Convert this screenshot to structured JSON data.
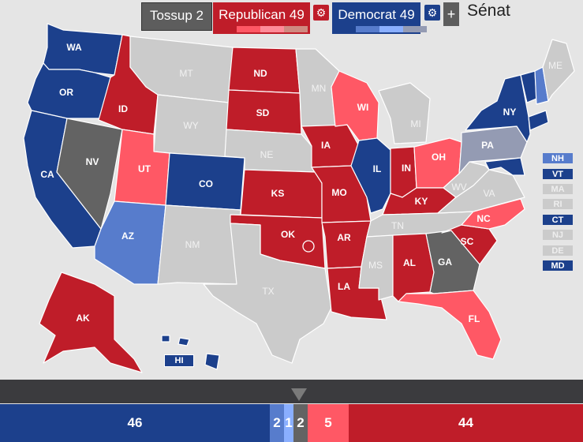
{
  "toolbar": {
    "tossup_label": "Tossup 2",
    "republican_label": "Republican 49",
    "democrat_label": "Democrat 49",
    "plus_label": "+",
    "title": "Sénat"
  },
  "colors": {
    "safe_dem": "#1c408c",
    "likely_dem": "#577ccc",
    "lean_dem": "#8aafff",
    "tilt_dem": "#949bb3",
    "tossup": "#636363",
    "tilt_rep": "#cf8980",
    "lean_rep": "#ff8b98",
    "likely_rep": "#ff5865",
    "safe_rep": "#bf1d29",
    "no_race": "#cbcbcb",
    "background": "#e5e5e5"
  },
  "states": [
    {
      "abbr": "WA",
      "rating": "safe_dem"
    },
    {
      "abbr": "OR",
      "rating": "safe_dem"
    },
    {
      "abbr": "CA",
      "rating": "safe_dem"
    },
    {
      "abbr": "NV",
      "rating": "tossup"
    },
    {
      "abbr": "ID",
      "rating": "safe_rep"
    },
    {
      "abbr": "MT",
      "rating": "no_race"
    },
    {
      "abbr": "WY",
      "rating": "no_race"
    },
    {
      "abbr": "UT",
      "rating": "likely_rep"
    },
    {
      "abbr": "AZ",
      "rating": "likely_dem"
    },
    {
      "abbr": "CO",
      "rating": "safe_dem"
    },
    {
      "abbr": "NM",
      "rating": "no_race"
    },
    {
      "abbr": "ND",
      "rating": "safe_rep"
    },
    {
      "abbr": "SD",
      "rating": "safe_rep"
    },
    {
      "abbr": "NE",
      "rating": "no_race"
    },
    {
      "abbr": "KS",
      "rating": "safe_rep"
    },
    {
      "abbr": "OK",
      "rating": "safe_rep"
    },
    {
      "abbr": "TX",
      "rating": "no_race"
    },
    {
      "abbr": "MN",
      "rating": "no_race"
    },
    {
      "abbr": "IA",
      "rating": "safe_rep"
    },
    {
      "abbr": "MO",
      "rating": "safe_rep"
    },
    {
      "abbr": "AR",
      "rating": "safe_rep"
    },
    {
      "abbr": "LA",
      "rating": "safe_rep"
    },
    {
      "abbr": "WI",
      "rating": "likely_rep"
    },
    {
      "abbr": "IL",
      "rating": "safe_dem"
    },
    {
      "abbr": "MI",
      "rating": "no_race"
    },
    {
      "abbr": "IN",
      "rating": "safe_rep"
    },
    {
      "abbr": "OH",
      "rating": "likely_rep"
    },
    {
      "abbr": "KY",
      "rating": "safe_rep"
    },
    {
      "abbr": "TN",
      "rating": "no_race"
    },
    {
      "abbr": "MS",
      "rating": "no_race"
    },
    {
      "abbr": "AL",
      "rating": "safe_rep"
    },
    {
      "abbr": "GA",
      "rating": "tossup"
    },
    {
      "abbr": "FL",
      "rating": "likely_rep"
    },
    {
      "abbr": "SC",
      "rating": "safe_rep"
    },
    {
      "abbr": "NC",
      "rating": "likely_rep"
    },
    {
      "abbr": "VA",
      "rating": "no_race"
    },
    {
      "abbr": "WV",
      "rating": "no_race"
    },
    {
      "abbr": "PA",
      "rating": "tilt_dem"
    },
    {
      "abbr": "NY",
      "rating": "safe_dem"
    },
    {
      "abbr": "VT",
      "rating": "safe_dem"
    },
    {
      "abbr": "NH",
      "rating": "likely_dem"
    },
    {
      "abbr": "ME",
      "rating": "no_race"
    },
    {
      "abbr": "MD",
      "rating": "safe_dem"
    },
    {
      "abbr": "CT",
      "rating": "safe_dem"
    },
    {
      "abbr": "AK",
      "rating": "safe_rep"
    },
    {
      "abbr": "HI",
      "rating": "safe_dem"
    }
  ],
  "northeast_boxes": [
    {
      "abbr": "NH",
      "rating": "likely_dem"
    },
    {
      "abbr": "VT",
      "rating": "safe_dem"
    },
    {
      "abbr": "MA",
      "rating": "no_race"
    },
    {
      "abbr": "RI",
      "rating": "no_race"
    },
    {
      "abbr": "CT",
      "rating": "safe_dem"
    },
    {
      "abbr": "NJ",
      "rating": "no_race"
    },
    {
      "abbr": "DE",
      "rating": "no_race"
    },
    {
      "abbr": "MD",
      "rating": "safe_dem"
    }
  ],
  "seat_bar": [
    {
      "value": "46",
      "rating": "safe_dem"
    },
    {
      "value": "2",
      "rating": "likely_dem"
    },
    {
      "value": "1",
      "rating": "lean_dem"
    },
    {
      "value": "2",
      "rating": "tossup"
    },
    {
      "value": "5",
      "rating": "likely_rep"
    },
    {
      "value": "44",
      "rating": "safe_rep"
    }
  ]
}
